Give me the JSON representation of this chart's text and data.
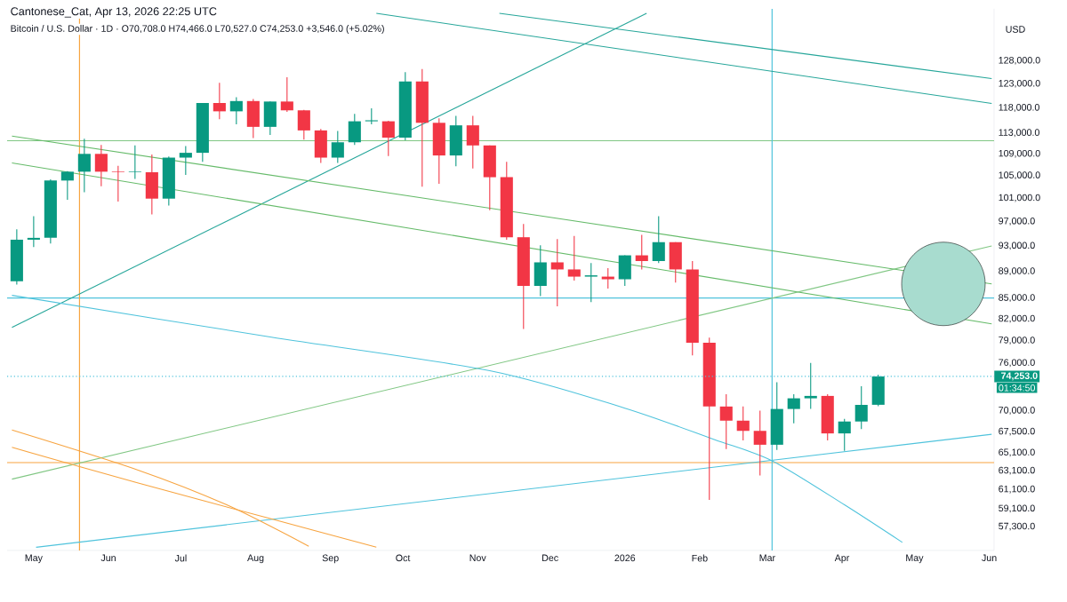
{
  "chart_data": {
    "type": "candlestick",
    "title": "Bitcoin / U.S. Dollar · 1D · O70,708.0 H74,466.0 L70,527.0 C74,253.0 +3,546.0 (+5.02%)",
    "subtitle": "Cantonese_Cat, Apr 13, 2026 22:25 UTC",
    "ylabel": "USD",
    "log": true,
    "xlim": [
      "2025-04-20",
      "2026-06-03"
    ],
    "ylim": [
      55000,
      140000
    ],
    "xticks": [
      {
        "value": "2025-05-01",
        "label": "May"
      },
      {
        "value": "2025-06-01",
        "label": "Jun"
      },
      {
        "value": "2025-07-01",
        "label": "Jul"
      },
      {
        "value": "2025-08-01",
        "label": "Aug"
      },
      {
        "value": "2025-09-01",
        "label": "Sep"
      },
      {
        "value": "2025-10-01",
        "label": "Oct"
      },
      {
        "value": "2025-11-01",
        "label": "Nov"
      },
      {
        "value": "2025-12-01",
        "label": "Dec"
      },
      {
        "value": "2026-01-01",
        "label": "2026"
      },
      {
        "value": "2026-02-01",
        "label": "Feb"
      },
      {
        "value": "2026-03-01",
        "label": "Mar"
      },
      {
        "value": "2026-04-01",
        "label": "Apr"
      },
      {
        "value": "2026-05-01",
        "label": "May"
      },
      {
        "value": "2026-06-01",
        "label": "Jun"
      }
    ],
    "yticks": [
      {
        "value": 57300,
        "label": "57,300.0"
      },
      {
        "value": 59100,
        "label": "59,100.0"
      },
      {
        "value": 61100,
        "label": "61,100.0"
      },
      {
        "value": 63100,
        "label": "63,100.0"
      },
      {
        "value": 65100,
        "label": "65,100.0"
      },
      {
        "value": 67500,
        "label": "67,500.0"
      },
      {
        "value": 70000,
        "label": "70,000.0"
      },
      {
        "value": 76000,
        "label": "76,000.0"
      },
      {
        "value": 79000,
        "label": "79,000.0"
      },
      {
        "value": 82000,
        "label": "82,000.0"
      },
      {
        "value": 85000,
        "label": "85,000.0"
      },
      {
        "value": 89000,
        "label": "89,000.0"
      },
      {
        "value": 93000,
        "label": "93,000.0"
      },
      {
        "value": 97000,
        "label": "97,000.0"
      },
      {
        "value": 101000,
        "label": "101,000.0"
      },
      {
        "value": 105000,
        "label": "105,000.0"
      },
      {
        "value": 109000,
        "label": "109,000.0"
      },
      {
        "value": 113000,
        "label": "113,000.0"
      },
      {
        "value": 118000,
        "label": "118,000.0"
      },
      {
        "value": 123000,
        "label": "123,000.0"
      },
      {
        "value": 128000,
        "label": "128,000.0"
      }
    ],
    "x": [
      "2025-04-24",
      "2025-05-01",
      "2025-05-08",
      "2025-05-15",
      "2025-05-22",
      "2025-05-29",
      "2025-06-05",
      "2025-06-12",
      "2025-06-19",
      "2025-06-26",
      "2025-07-03",
      "2025-07-10",
      "2025-07-17",
      "2025-07-24",
      "2025-07-31",
      "2025-08-07",
      "2025-08-14",
      "2025-08-21",
      "2025-08-28",
      "2025-09-04",
      "2025-09-11",
      "2025-09-18",
      "2025-09-25",
      "2025-10-02",
      "2025-10-09",
      "2025-10-16",
      "2025-10-23",
      "2025-10-30",
      "2025-11-06",
      "2025-11-13",
      "2025-11-20",
      "2025-11-27",
      "2025-12-04",
      "2025-12-11",
      "2025-12-18",
      "2025-12-25",
      "2026-01-01",
      "2026-01-08",
      "2026-01-15",
      "2026-01-22",
      "2026-01-29",
      "2026-02-05",
      "2026-02-12",
      "2026-02-19",
      "2026-02-26",
      "2026-03-05",
      "2026-03-12",
      "2026-03-19",
      "2026-03-26",
      "2026-04-02",
      "2026-04-09",
      "2026-04-16"
    ],
    "ohlc": [
      [
        87500,
        95700,
        87000,
        94000
      ],
      [
        94000,
        97900,
        92800,
        94300
      ],
      [
        94300,
        104300,
        93400,
        104100
      ],
      [
        104100,
        105800,
        100700,
        105700
      ],
      [
        105700,
        111900,
        102000,
        109000
      ],
      [
        109000,
        110700,
        103100,
        105700
      ],
      [
        105700,
        106800,
        100400,
        105600
      ],
      [
        105600,
        110600,
        104400,
        105700
      ],
      [
        105600,
        108900,
        98200,
        100900
      ],
      [
        100900,
        108500,
        99700,
        108300
      ],
      [
        108300,
        110500,
        105100,
        109200
      ],
      [
        109200,
        119000,
        107500,
        119000
      ],
      [
        119000,
        123200,
        115700,
        117300
      ],
      [
        117300,
        120200,
        114700,
        119400
      ],
      [
        119400,
        119800,
        112000,
        114200
      ],
      [
        114200,
        119300,
        112600,
        119300
      ],
      [
        119300,
        124400,
        117200,
        117500
      ],
      [
        117500,
        117600,
        111700,
        113500
      ],
      [
        113500,
        113800,
        107300,
        108300
      ],
      [
        108300,
        113400,
        107300,
        111200
      ],
      [
        111200,
        116800,
        110700,
        115300
      ],
      [
        115300,
        117900,
        114700,
        115500
      ],
      [
        115300,
        115400,
        108600,
        112100
      ],
      [
        112100,
        125500,
        111600,
        123500
      ],
      [
        123500,
        126200,
        103000,
        115000
      ],
      [
        115000,
        115900,
        103500,
        108700
      ],
      [
        108700,
        116400,
        106700,
        114500
      ],
      [
        114500,
        116400,
        106300,
        110600
      ],
      [
        110600,
        110600,
        98900,
        104700
      ],
      [
        104700,
        107500,
        94000,
        94400
      ],
      [
        94400,
        96600,
        80600,
        86800
      ],
      [
        86800,
        93100,
        85300,
        90400
      ],
      [
        90400,
        94100,
        83800,
        89300
      ],
      [
        89300,
        94600,
        87600,
        88200
      ],
      [
        88200,
        90300,
        84400,
        88400
      ],
      [
        88200,
        89500,
        86400,
        87800
      ],
      [
        87800,
        91500,
        86800,
        91500
      ],
      [
        91500,
        94800,
        89300,
        90600
      ],
      [
        90600,
        97900,
        90300,
        93600
      ],
      [
        93600,
        93600,
        87300,
        89300
      ],
      [
        89300,
        90600,
        77000,
        78700
      ],
      [
        78700,
        79400,
        60000,
        70500
      ],
      [
        70500,
        72000,
        65500,
        68800
      ],
      [
        68800,
        70500,
        66500,
        67600
      ],
      [
        67600,
        70000,
        62600,
        66000
      ],
      [
        66000,
        73500,
        65400,
        70200
      ],
      [
        70200,
        72000,
        68500,
        71500
      ],
      [
        71500,
        76000,
        70200,
        71800
      ],
      [
        71800,
        72000,
        66500,
        67300
      ],
      [
        67300,
        69000,
        65300,
        68700
      ],
      [
        68700,
        73000,
        67800,
        70700
      ],
      [
        70708,
        74466,
        70527,
        74253
      ]
    ],
    "colors": [
      "#089981",
      "#089981",
      "#089981",
      "#089981",
      "#089981",
      "#f23645",
      "#f23645",
      "#089981",
      "#f23645",
      "#089981",
      "#089981",
      "#089981",
      "#f23645",
      "#089981",
      "#f23645",
      "#089981",
      "#f23645",
      "#f23645",
      "#f23645",
      "#089981",
      "#089981",
      "#089981",
      "#f23645",
      "#089981",
      "#f23645",
      "#f23645",
      "#089981",
      "#f23645",
      "#f23645",
      "#f23645",
      "#f23645",
      "#089981",
      "#f23645",
      "#f23645",
      "#089981",
      "#f23645",
      "#089981",
      "#f23645",
      "#089981",
      "#f23645",
      "#f23645",
      "#f23645",
      "#f23645",
      "#f23645",
      "#f23645",
      "#089981",
      "#089981",
      "#089981",
      "#f23645",
      "#089981",
      "#089981",
      "#089981"
    ],
    "series": [
      {
        "type": "line",
        "color": "#26a69a",
        "x": [
          "2025-11-10",
          "2026-06-02"
        ],
        "values": [
          138900,
          124100
        ]
      },
      {
        "type": "line",
        "color": "#26a69a",
        "x": [
          "2025-09-20",
          "2026-06-02"
        ],
        "values": [
          138900,
          118900
        ]
      },
      {
        "type": "line",
        "color": "#26a69a",
        "x": [
          "2025-04-22",
          "2026-01-10"
        ],
        "values": [
          80800,
          138900
        ]
      },
      {
        "type": "line",
        "color": "#66bb6a",
        "x": [
          "2025-04-22",
          "2026-06-02"
        ],
        "values": [
          112400,
          87100
        ]
      },
      {
        "type": "line",
        "color": "#66bb6a",
        "x": [
          "2025-04-22",
          "2026-06-02"
        ],
        "values": [
          107300,
          81300
        ]
      },
      {
        "type": "line",
        "color": "#81c784",
        "x": [
          "2025-04-22",
          "2026-06-02"
        ],
        "values": [
          62200,
          93000
        ]
      },
      {
        "type": "line",
        "color": "#4fc3dc",
        "x": [
          "2025-05-02",
          "2026-06-02"
        ],
        "values": [
          55300,
          67200
        ]
      },
      {
        "type": "line",
        "color": "#4fc3dc",
        "x": [
          "2025-04-22",
          "2025-08-07",
          "2025-11-06",
          "2026-01-01",
          "2026-02-07",
          "2026-03-03",
          "2026-04-02",
          "2026-04-26"
        ],
        "values": [
          85400,
          79500,
          75000,
          70300,
          66600,
          64200,
          59500,
          55760
        ]
      },
      {
        "type": "line",
        "color": "#f7a440",
        "x": [
          "2025-04-22",
          "2025-06-13",
          "2025-07-20",
          "2025-08-23"
        ],
        "values": [
          67700,
          63200,
          59500,
          55400
        ]
      },
      {
        "type": "line",
        "color": "#f7a440",
        "x": [
          "2025-04-22",
          "2025-06-13",
          "2025-08-07",
          "2025-09-20"
        ],
        "values": [
          65700,
          61800,
          58100,
          55300
        ]
      },
      {
        "type": "bubble",
        "color": "#a8dccf",
        "x": [
          "2026-05-13"
        ],
        "values": [
          87100
        ],
        "sizes": [
          1
        ]
      }
    ],
    "ref_lines": [
      {
        "axis": "y",
        "value": 111500,
        "color": "#81c784"
      },
      {
        "axis": "y",
        "value": 85000,
        "color": "#4fc3dc"
      },
      {
        "axis": "y",
        "value": 64000,
        "color": "#f7a440"
      },
      {
        "axis": "x",
        "value": "2025-05-20",
        "color": "#f7a440"
      },
      {
        "axis": "x",
        "value": "2026-03-03",
        "color": "#4fc3dc"
      },
      {
        "axis": "y",
        "value": 74253,
        "color": "#4fc3dc",
        "line_style": "dotted",
        "label": "74,253.0"
      }
    ],
    "annotations": [
      "01:34:50"
    ]
  }
}
